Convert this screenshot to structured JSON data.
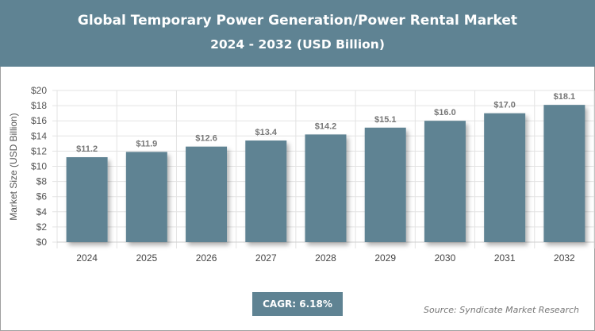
{
  "header": {
    "title_line1": "Global Temporary Power Generation/Power Rental Market",
    "title_line2": "2024 - 2032 (USD Billion)"
  },
  "colors": {
    "bar": "#5f8393",
    "header": "#5f8393"
  },
  "chart_data": {
    "type": "bar",
    "title": "Global Temporary Power Generation/Power Rental Market 2024 - 2032 (USD Billion)",
    "categories": [
      "2024",
      "2025",
      "2026",
      "2027",
      "2028",
      "2029",
      "2030",
      "2031",
      "2032"
    ],
    "values": [
      11.2,
      11.9,
      12.6,
      13.4,
      14.2,
      15.1,
      16.0,
      17.0,
      18.1
    ],
    "data_labels": [
      "$11.2",
      "$11.9",
      "$12.6",
      "$13.4",
      "$14.2",
      "$15.1",
      "$16.0",
      "$17.0",
      "$18.1"
    ],
    "ylabel": "Market Size (USD Billion)",
    "xlabel": "",
    "ylim": [
      0,
      20
    ],
    "yticks": [
      "$0",
      "$2",
      "$4",
      "$6",
      "$8",
      "$10",
      "$12",
      "$14",
      "$16",
      "$18",
      "$20"
    ],
    "grid": true
  },
  "footer": {
    "cagr": "CAGR: 6.18%",
    "source": "Source: Syndicate Market Research"
  }
}
